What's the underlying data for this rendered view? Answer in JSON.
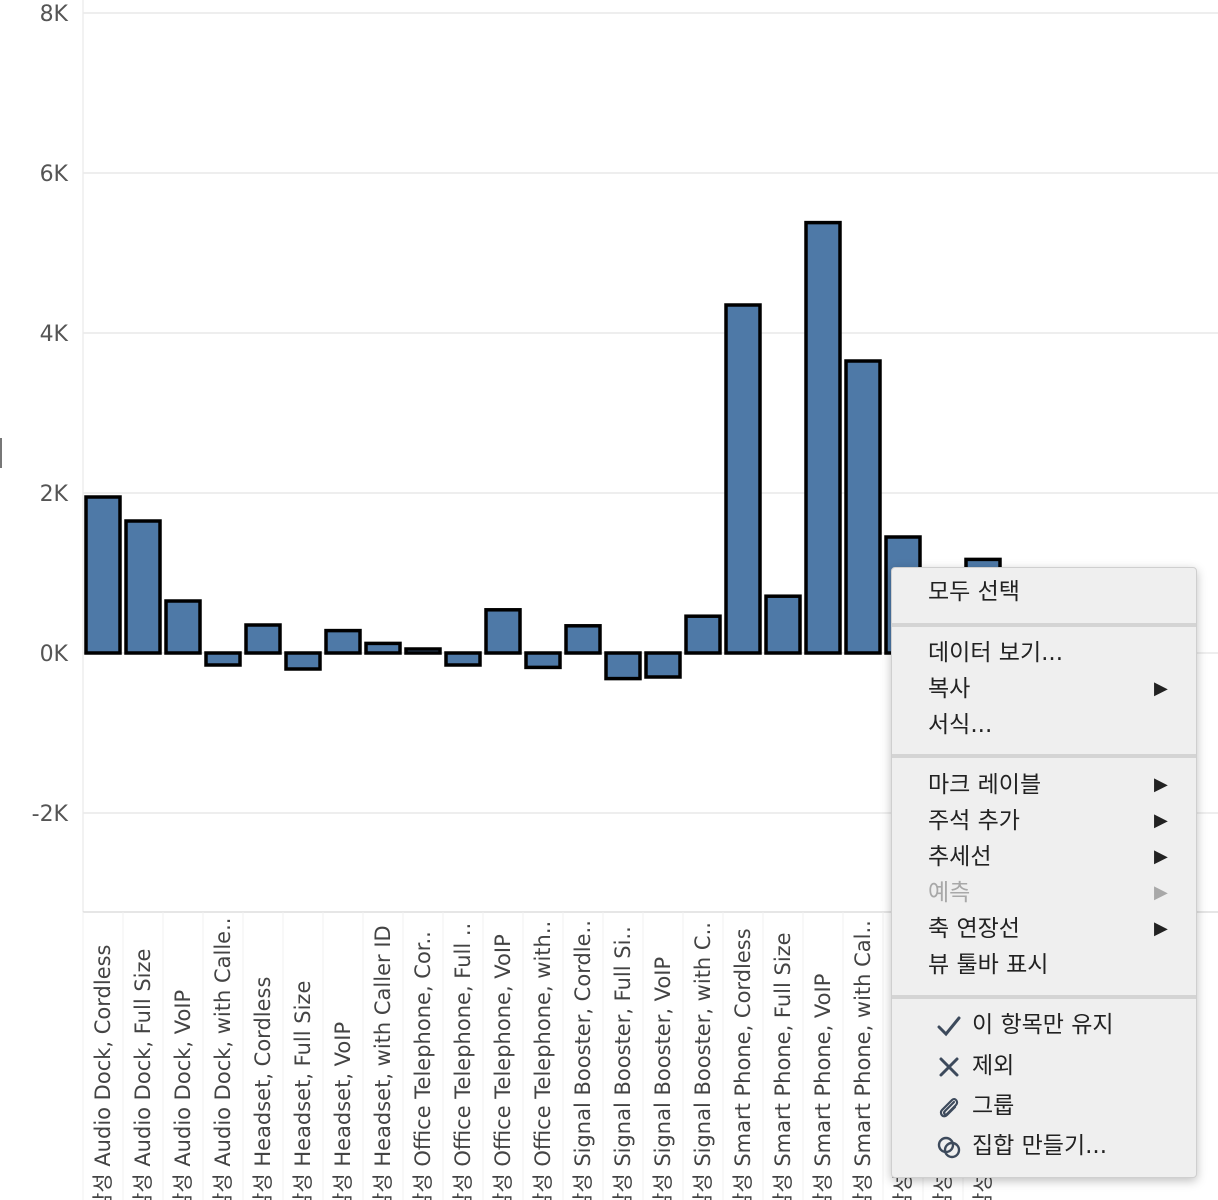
{
  "chart_data": {
    "type": "bar",
    "categories": [
      "삼성 Audio Dock, Cordless",
      "삼성 Audio Dock, Full Size",
      "삼성 Audio Dock, VoIP",
      "삼성 Audio Dock, with Calle..",
      "삼성 Headset, Cordless",
      "삼성 Headset, Full Size",
      "삼성 Headset, VoIP",
      "삼성 Headset, with Caller ID",
      "삼성 Office Telephone, Cor..",
      "삼성 Office Telephone, Full ..",
      "삼성 Office Telephone, VoIP",
      "삼성 Office Telephone, with..",
      "삼성 Signal Booster, Cordle..",
      "삼성 Signal Booster, Full Si..",
      "삼성 Signal Booster, VoIP",
      "삼성 Signal Booster, with C..",
      "삼성 Smart Phone, Cordless",
      "삼성 Smart Phone, Full Size",
      "삼성 Smart Phone, VoIP",
      "삼성 Smart Phone, with Cal..",
      "삼성 ...",
      "삼성 ...",
      "삼성 ..."
    ],
    "values": [
      1950,
      1650,
      650,
      -150,
      350,
      -200,
      280,
      120,
      50,
      -150,
      540,
      -180,
      340,
      -320,
      -300,
      460,
      4350,
      710,
      5380,
      3650,
      1450,
      700,
      1170
    ],
    "y_ticks": [
      "8K",
      "6K",
      "4K",
      "2K",
      "0K",
      "-2K"
    ],
    "ylim": [
      -3200,
      8000
    ],
    "grid": true,
    "bar_color": "#4e79a7",
    "bar_outline": "#000000"
  },
  "context_menu": {
    "select_all": "모두 선택",
    "view_data": "데이터 보기...",
    "copy": "복사",
    "format": "서식...",
    "mark_label": "마크 레이블",
    "add_annotation": "주석 추가",
    "trend_line": "추세선",
    "forecast": "예측",
    "axis_extension": "축 연장선",
    "show_view_toolbar": "뷰 툴바 표시",
    "keep_only": "이 항목만 유지",
    "exclude": "제외",
    "group": "그룹",
    "create_set": "집합 만들기...",
    "submenu_arrow": "▶"
  }
}
